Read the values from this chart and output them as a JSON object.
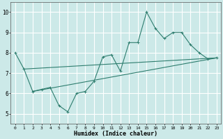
{
  "xlabel": "Humidex (Indice chaleur)",
  "xlim": [
    -0.5,
    23.5
  ],
  "ylim": [
    4.5,
    10.5
  ],
  "xticks": [
    0,
    1,
    2,
    3,
    4,
    5,
    6,
    7,
    8,
    9,
    10,
    11,
    12,
    13,
    14,
    15,
    16,
    17,
    18,
    19,
    20,
    21,
    22,
    23
  ],
  "yticks": [
    5,
    6,
    7,
    8,
    9,
    10
  ],
  "background_color": "#cce9e8",
  "grid_color": "#ffffff",
  "line_color": "#2e7d6e",
  "line1_x": [
    0,
    1,
    2,
    3,
    4,
    5,
    6,
    7,
    8,
    9,
    10,
    11,
    12,
    13,
    14,
    15,
    16,
    17,
    18,
    19,
    20,
    21,
    22,
    23
  ],
  "line1_y": [
    8.0,
    7.2,
    6.1,
    6.2,
    6.3,
    5.4,
    5.1,
    6.0,
    6.1,
    6.6,
    7.8,
    7.9,
    7.1,
    8.5,
    8.5,
    10.0,
    9.2,
    8.7,
    9.0,
    9.0,
    8.4,
    8.0,
    7.7,
    7.75
  ],
  "line2_x": [
    1,
    23
  ],
  "line2_y": [
    7.2,
    7.75
  ],
  "line3_x": [
    2,
    23
  ],
  "line3_y": [
    6.1,
    7.75
  ]
}
